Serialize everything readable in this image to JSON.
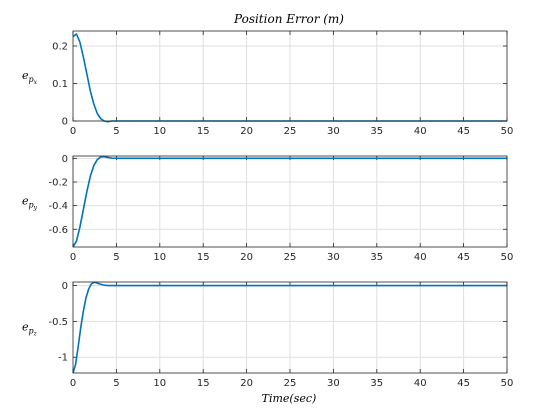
{
  "chart_data": [
    {
      "type": "line",
      "title": "Position Error (m)",
      "xlabel": "",
      "ylabel": "e",
      "ylabel_sub": "p",
      "ylabel_subsub": "x",
      "xlim": [
        0,
        50
      ],
      "ylim": [
        0,
        0.24
      ],
      "xticks": [
        "0",
        "5",
        "10",
        "15",
        "20",
        "25",
        "30",
        "35",
        "40",
        "45",
        "50"
      ],
      "yticks": [
        {
          "v": 0,
          "label": "0"
        },
        {
          "v": 0.1,
          "label": "0.1"
        },
        {
          "v": 0.2,
          "label": "0.2"
        }
      ],
      "grid": true,
      "series": [
        {
          "color": "#0072BD",
          "x": [
            0,
            0.4,
            0.8,
            1.2,
            1.6,
            2.0,
            2.4,
            2.8,
            3.2,
            3.6,
            4.0,
            4.5,
            5,
            10,
            20,
            30,
            40,
            50
          ],
          "y": [
            0.225,
            0.232,
            0.21,
            0.17,
            0.125,
            0.08,
            0.045,
            0.02,
            0.006,
            0.0,
            -0.002,
            0.0,
            0.0,
            0.0,
            0.0,
            0.0,
            0.0,
            0.0
          ]
        }
      ]
    },
    {
      "type": "line",
      "title": "",
      "xlabel": "",
      "ylabel": "e",
      "ylabel_sub": "p",
      "ylabel_subsub": "y",
      "xlim": [
        0,
        50
      ],
      "ylim": [
        -0.75,
        0.02
      ],
      "xticks": [
        "0",
        "5",
        "10",
        "15",
        "20",
        "25",
        "30",
        "35",
        "40",
        "45",
        "50"
      ],
      "yticks": [
        {
          "v": 0,
          "label": "0"
        },
        {
          "v": -0.2,
          "label": "-0.2"
        },
        {
          "v": -0.4,
          "label": "-0.4"
        },
        {
          "v": -0.6,
          "label": "-0.6"
        }
      ],
      "grid": true,
      "series": [
        {
          "color": "#0072BD",
          "x": [
            0,
            0.4,
            0.8,
            1.2,
            1.6,
            2.0,
            2.4,
            2.8,
            3.2,
            3.6,
            4.0,
            4.5,
            5,
            10,
            20,
            30,
            40,
            50
          ],
          "y": [
            -0.75,
            -0.7,
            -0.58,
            -0.43,
            -0.28,
            -0.15,
            -0.06,
            -0.01,
            0.012,
            0.015,
            0.008,
            0.002,
            0.0,
            0.0,
            0.0,
            0.0,
            0.0,
            0.0
          ]
        }
      ]
    },
    {
      "type": "line",
      "title": "",
      "xlabel": "Time(sec)",
      "ylabel": "e",
      "ylabel_sub": "p",
      "ylabel_subsub": "z",
      "xlim": [
        0,
        50
      ],
      "ylim": [
        -1.22,
        0.05
      ],
      "xticks": [
        "0",
        "5",
        "10",
        "15",
        "20",
        "25",
        "30",
        "35",
        "40",
        "45",
        "50"
      ],
      "yticks": [
        {
          "v": 0,
          "label": "0"
        },
        {
          "v": -0.5,
          "label": "-0.5"
        },
        {
          "v": -1,
          "label": "-1"
        }
      ],
      "grid": true,
      "series": [
        {
          "color": "#0072BD",
          "x": [
            0,
            0.3,
            0.6,
            0.9,
            1.2,
            1.5,
            1.8,
            2.1,
            2.4,
            2.7,
            3.0,
            3.5,
            4.0,
            5,
            10,
            20,
            30,
            40,
            50
          ],
          "y": [
            -1.22,
            -1.1,
            -0.85,
            -0.58,
            -0.35,
            -0.17,
            -0.05,
            0.02,
            0.045,
            0.04,
            0.025,
            0.008,
            0.0,
            0.0,
            0.0,
            0.0,
            0.0,
            0.0,
            0.0
          ]
        }
      ]
    }
  ]
}
